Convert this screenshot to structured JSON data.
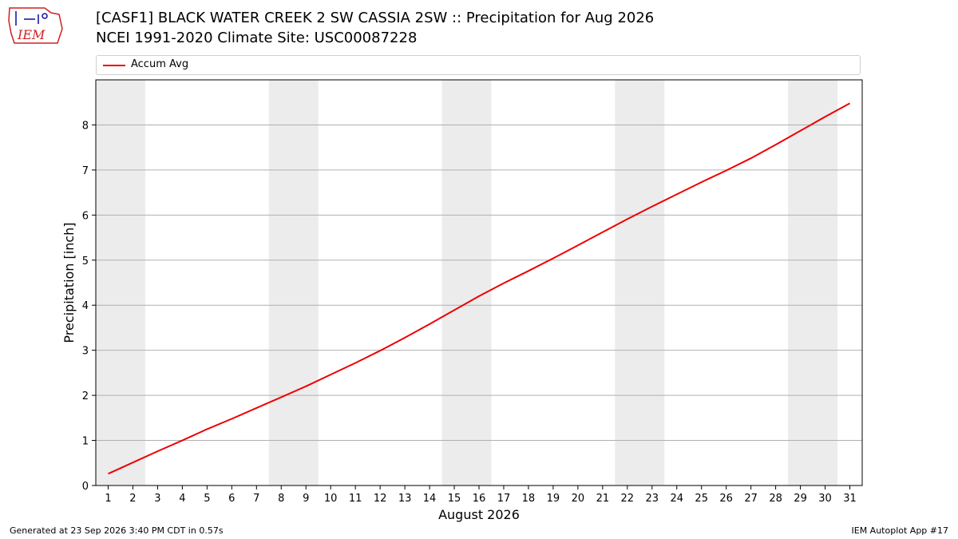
{
  "header": {
    "title": "[CASF1] BLACK WATER CREEK 2 SW CASSIA 2SW :: Precipitation for Aug 2026",
    "subtitle": "NCEI 1991-2020 Climate Site: USC00087228"
  },
  "logo": {
    "text": "IEM"
  },
  "footer": {
    "generated": "Generated at 23 Sep 2026 3:40 PM CDT in 0.57s",
    "app": "IEM Autoplot App #17"
  },
  "colors": {
    "line": "#ee0000",
    "weekend_shade": "#ececec",
    "grid": "#b0b0b0",
    "logo": "#d02020"
  },
  "chart_data": {
    "type": "line",
    "xlabel": "August 2026",
    "ylabel": "Precipitation [inch]",
    "xlim": [
      0.5,
      31.5
    ],
    "ylim": [
      0,
      9
    ],
    "y_ticks": [
      0,
      1,
      2,
      3,
      4,
      5,
      6,
      7,
      8
    ],
    "x": [
      1,
      2,
      3,
      4,
      5,
      6,
      7,
      8,
      9,
      10,
      11,
      12,
      13,
      14,
      15,
      16,
      17,
      18,
      19,
      20,
      21,
      22,
      23,
      24,
      25,
      26,
      27,
      28,
      29,
      30,
      31
    ],
    "shaded_days": [
      [
        0.5,
        2.5
      ],
      [
        7.5,
        9.5
      ],
      [
        14.5,
        16.5
      ],
      [
        21.5,
        23.5
      ],
      [
        28.5,
        30.5
      ]
    ],
    "grid": "horizontal",
    "legend_position": "top",
    "series": [
      {
        "name": "Accum Avg",
        "color": "#ee0000",
        "values": [
          0.26,
          0.51,
          0.76,
          1.0,
          1.25,
          1.48,
          1.72,
          1.96,
          2.2,
          2.46,
          2.72,
          2.99,
          3.28,
          3.58,
          3.89,
          4.2,
          4.49,
          4.76,
          5.04,
          5.33,
          5.62,
          5.91,
          6.19,
          6.46,
          6.73,
          6.99,
          7.26,
          7.56,
          7.87,
          8.18,
          8.48
        ]
      }
    ]
  }
}
